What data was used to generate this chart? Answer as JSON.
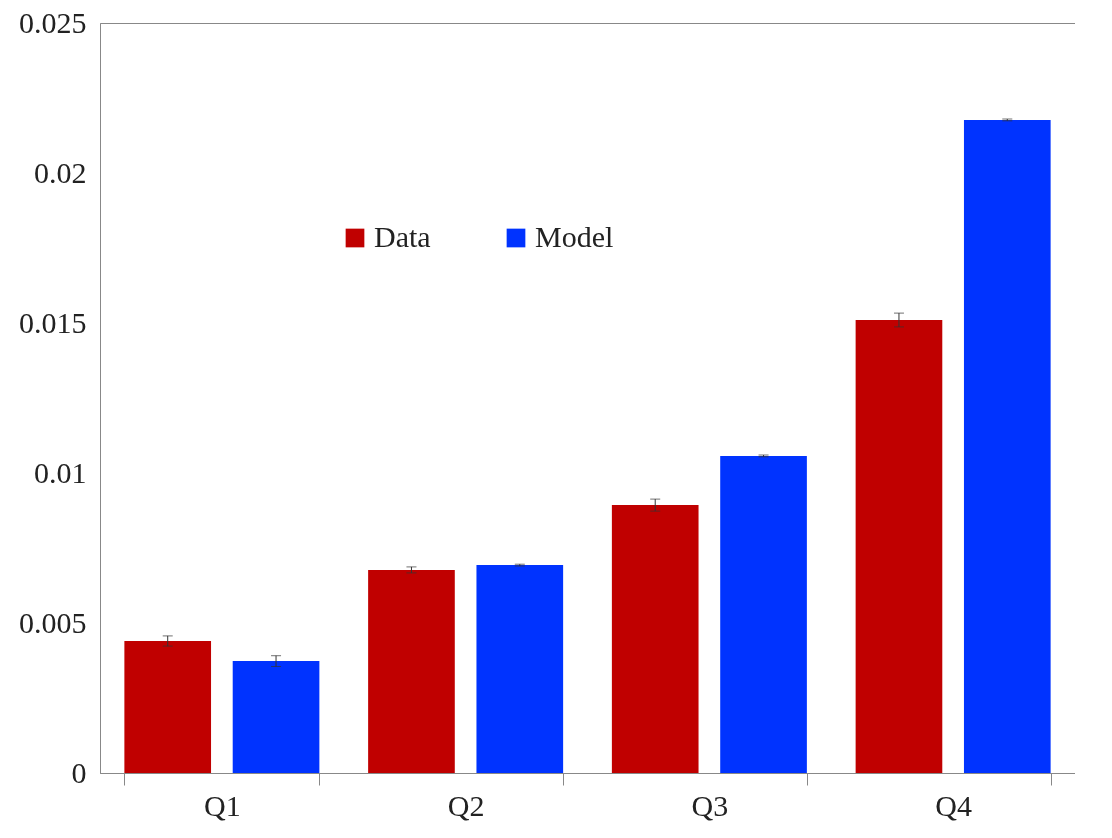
{
  "chart_data": {
    "type": "bar",
    "categories": [
      "Q1",
      "Q2",
      "Q3",
      "Q4"
    ],
    "series": [
      {
        "name": "Data",
        "color": "#c00000",
        "values": [
          0.0044,
          0.00677,
          0.00893,
          0.0151
        ],
        "errors": [
          0.00017,
          0.0001,
          0.0002,
          0.00023
        ]
      },
      {
        "name": "Model",
        "color": "#0033ff",
        "values": [
          0.00373,
          0.00693,
          0.01057,
          0.02177
        ],
        "errors": [
          0.00018,
          3e-05,
          3e-05,
          3e-05
        ]
      }
    ],
    "ylim": [
      0,
      0.025
    ],
    "yticks": [
      0,
      0.005,
      0.01,
      0.015,
      0.02,
      0.025
    ],
    "grid": false,
    "legend": "top left"
  }
}
